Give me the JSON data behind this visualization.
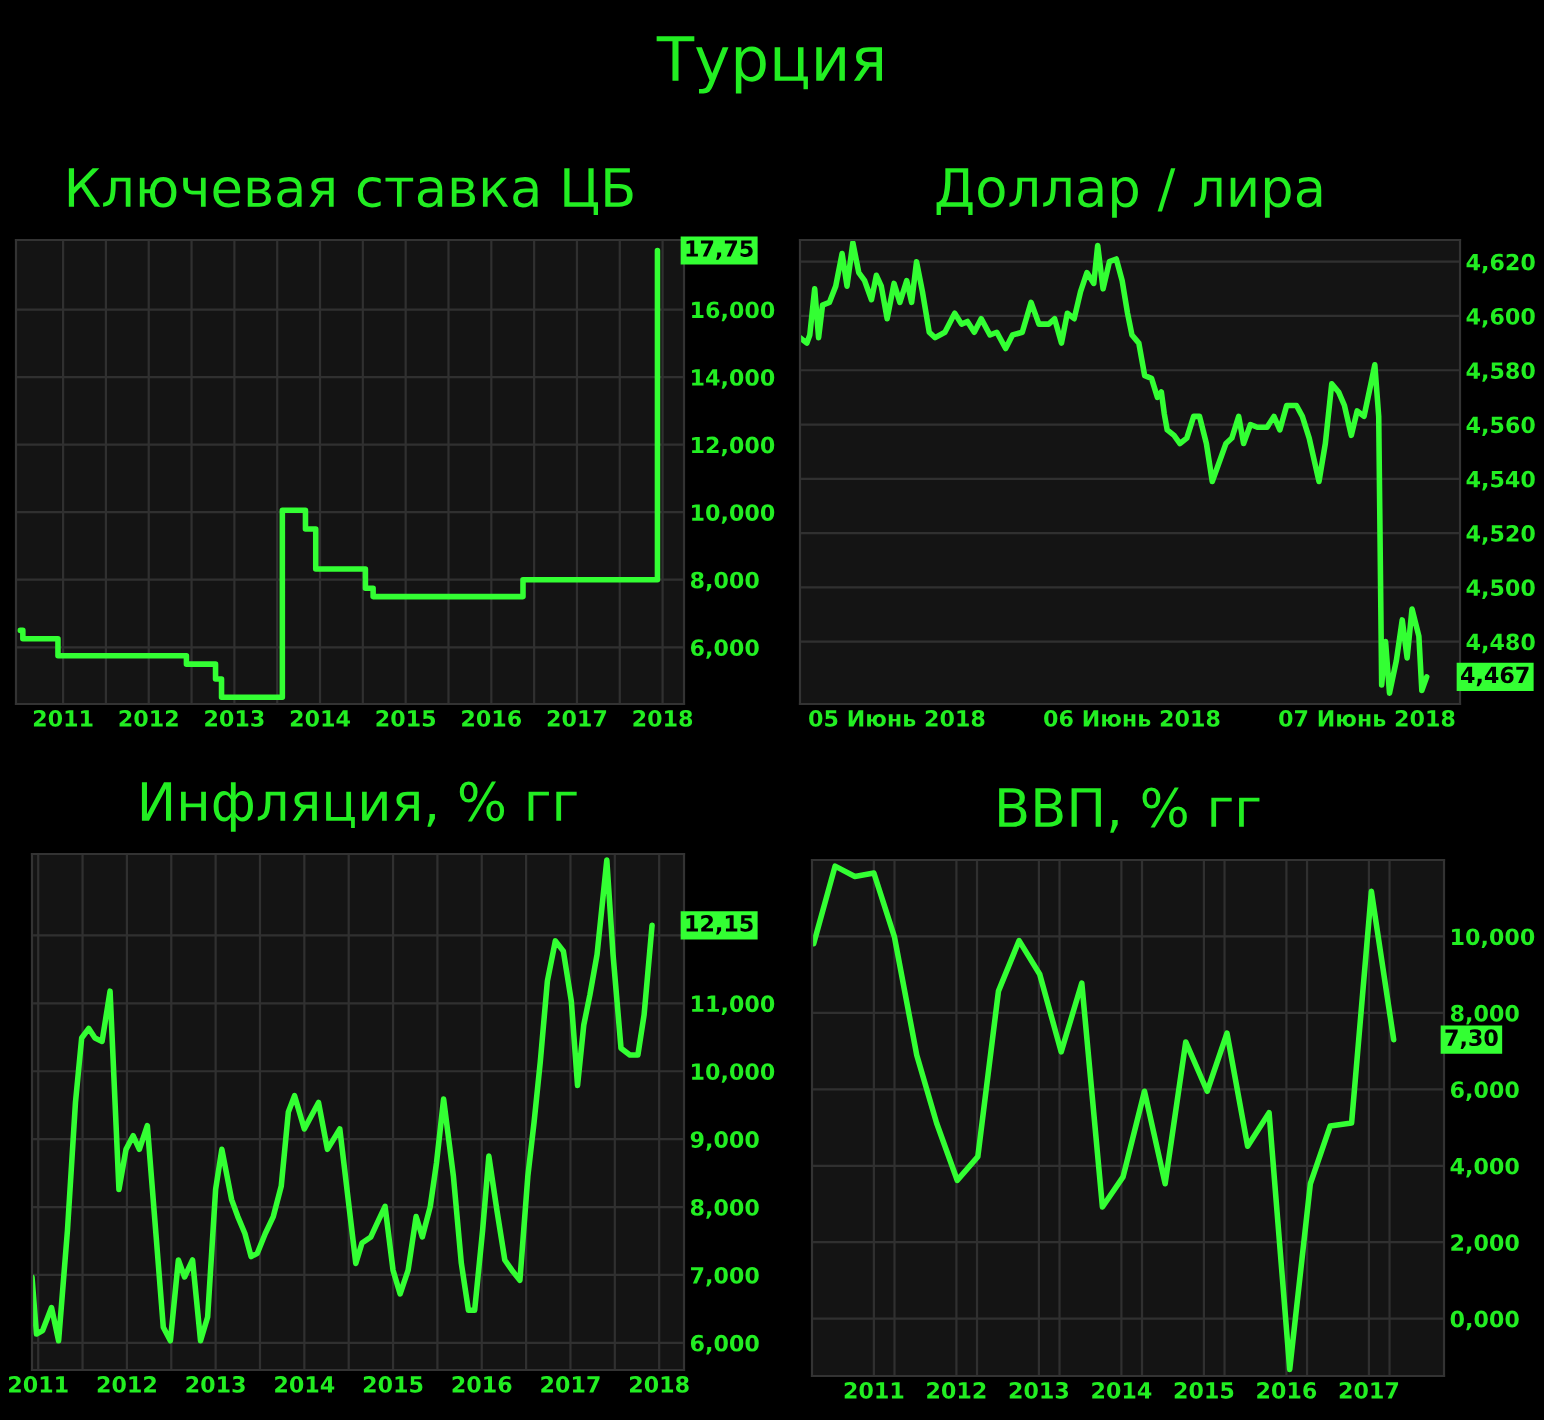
{
  "chart_data": [
    {
      "type": "step",
      "title": "Ключевая ставка ЦБ",
      "annotations": [
        "Турция",
        {
          "text": "17,75",
          "y": 17.75
        }
      ],
      "series": [
        {
          "color": "#33ff33",
          "x": [
            2011.0,
            2011.03,
            2011.43,
            2011.44,
            2012.94,
            2013.28,
            2013.35,
            2014.04,
            2014.06,
            2014.33,
            2014.45,
            2015.03,
            2015.12,
            2016.87,
            2018.37,
            2018.44
          ],
          "values": [
            6.5,
            6.25,
            6.25,
            5.75,
            5.5,
            5.06,
            4.52,
            4.52,
            10.06,
            9.5,
            8.32,
            7.75,
            7.5,
            8.0,
            8.0,
            17.75
          ]
        }
      ],
      "xlim": [
        2010.95,
        2018.75
      ],
      "xticks": [
        {
          "value": 2011.5,
          "label": "2011"
        },
        {
          "value": 2012.5,
          "label": "2012"
        },
        {
          "value": 2013.5,
          "label": "2013"
        },
        {
          "value": 2014.5,
          "label": "2014"
        },
        {
          "value": 2015.5,
          "label": "2015"
        },
        {
          "value": 2016.5,
          "label": "2016"
        },
        {
          "value": 2017.5,
          "label": "2017"
        },
        {
          "value": 2018.5,
          "label": "2018"
        },
        {
          "value": 2012,
          "label": null
        },
        {
          "value": 2013,
          "label": null
        },
        {
          "value": 2014,
          "label": null
        },
        {
          "value": 2015,
          "label": null
        },
        {
          "value": 2016,
          "label": null
        },
        {
          "value": 2017,
          "label": null
        },
        {
          "value": 2018,
          "label": null
        }
      ],
      "ylim": [
        4.32,
        18.06
      ],
      "yticks": [
        {
          "value": 6,
          "label": "6,000"
        },
        {
          "value": 8,
          "label": "8,000"
        },
        {
          "value": 10,
          "label": "10,000"
        },
        {
          "value": 12,
          "label": "12,000"
        },
        {
          "value": 14,
          "label": "14,000"
        },
        {
          "value": 16,
          "label": "16,000"
        }
      ],
      "grid": true
    },
    {
      "type": "line",
      "title": "Доллар / лира",
      "annotations": [
        {
          "text": "4,467",
          "y": 4.467
        }
      ],
      "series": [
        {
          "color": "#33ff33",
          "x": [
            "2018-06-05T02:06",
            "2018-06-05T02:48",
            "2018-06-05T03:06",
            "2018-06-05T03:36",
            "2018-06-05T04:00",
            "2018-06-05T04:24",
            "2018-06-05T05:06",
            "2018-06-05T05:45",
            "2018-06-05T06:24",
            "2018-06-05T06:54",
            "2018-06-05T07:30",
            "2018-06-05T08:06",
            "2018-06-05T08:42",
            "2018-06-05T09:24",
            "2018-06-05T09:54",
            "2018-06-05T10:24",
            "2018-06-05T11:00",
            "2018-06-05T11:42",
            "2018-06-05T12:18",
            "2018-06-05T13:00",
            "2018-06-05T13:30",
            "2018-06-05T14:00",
            "2018-06-05T14:36",
            "2018-06-05T15:18",
            "2018-06-05T15:54",
            "2018-06-05T16:54",
            "2018-06-05T17:54",
            "2018-06-05T18:36",
            "2018-06-05T19:12",
            "2018-06-05T19:54",
            "2018-06-05T20:36",
            "2018-06-05T21:30",
            "2018-06-05T22:12",
            "2018-06-05T23:06",
            "2018-06-05T23:48",
            "2018-06-06T00:48",
            "2018-06-06T01:42",
            "2018-06-06T02:30",
            "2018-06-06T03:30",
            "2018-06-06T04:06",
            "2018-06-06T04:48",
            "2018-06-06T05:24",
            "2018-06-06T06:06",
            "2018-06-06T06:45",
            "2018-06-06T07:24",
            "2018-06-06T08:06",
            "2018-06-06T08:30",
            "2018-06-06T09:03",
            "2018-06-06T09:42",
            "2018-06-06T10:24",
            "2018-06-06T11:00",
            "2018-06-06T11:33",
            "2018-06-06T12:00",
            "2018-06-06T12:42",
            "2018-06-06T13:18",
            "2018-06-06T14:00",
            "2018-06-06T14:36",
            "2018-06-06T15:00",
            "2018-06-06T15:18",
            "2018-06-06T15:36",
            "2018-06-06T16:18",
            "2018-06-06T16:54",
            "2018-06-06T17:36",
            "2018-06-06T18:18",
            "2018-06-06T18:54",
            "2018-06-06T19:36",
            "2018-06-06T20:12",
            "2018-06-06T20:54",
            "2018-06-06T21:36",
            "2018-06-06T22:12",
            "2018-06-06T22:54",
            "2018-06-06T23:24",
            "2018-06-07T00:06",
            "2018-06-07T00:48",
            "2018-06-07T01:48",
            "2018-06-07T02:30",
            "2018-06-07T03:06",
            "2018-06-07T03:48",
            "2018-06-07T04:48",
            "2018-06-07T05:24",
            "2018-06-07T06:06",
            "2018-06-07T07:06",
            "2018-06-07T07:45",
            "2018-06-07T08:24",
            "2018-06-07T09:06",
            "2018-06-07T09:42",
            "2018-06-07T10:24",
            "2018-06-07T11:00",
            "2018-06-07T11:42",
            "2018-06-07T12:24",
            "2018-06-07T12:48",
            "2018-06-07T13:12",
            "2018-06-07T13:30",
            "2018-06-07T13:54",
            "2018-06-07T14:18",
            "2018-06-07T15:00",
            "2018-06-07T15:36",
            "2018-06-07T16:06",
            "2018-06-07T16:36",
            "2018-06-07T17:18",
            "2018-06-07T17:36",
            "2018-06-07T18:06"
          ],
          "values": [
            4.592,
            4.59,
            4.593,
            4.61,
            4.592,
            4.604,
            4.605,
            4.611,
            4.623,
            4.611,
            4.627,
            4.616,
            4.613,
            4.606,
            4.615,
            4.611,
            4.599,
            4.612,
            4.605,
            4.613,
            4.605,
            4.62,
            4.609,
            4.594,
            4.592,
            4.594,
            4.601,
            4.597,
            4.598,
            4.594,
            4.599,
            4.593,
            4.594,
            4.588,
            4.593,
            4.594,
            4.605,
            4.597,
            4.597,
            4.599,
            4.59,
            4.601,
            4.599,
            4.609,
            4.616,
            4.612,
            4.626,
            4.61,
            4.62,
            4.621,
            4.613,
            4.601,
            4.593,
            4.59,
            4.578,
            4.577,
            4.57,
            4.572,
            4.564,
            4.558,
            4.556,
            4.553,
            4.555,
            4.563,
            4.563,
            4.553,
            4.539,
            4.546,
            4.553,
            4.555,
            4.563,
            4.553,
            4.56,
            4.559,
            4.559,
            4.563,
            4.558,
            4.567,
            4.567,
            4.563,
            4.555,
            4.539,
            4.553,
            4.575,
            4.572,
            4.567,
            4.556,
            4.565,
            4.563,
            4.575,
            4.582,
            4.563,
            4.464,
            4.48,
            4.461,
            4.473,
            4.488,
            4.474,
            4.492,
            4.482,
            4.462,
            4.467
          ]
        }
      ],
      "xlim": [
        "2018-06-05T02:06",
        "2018-06-07T21:30"
      ],
      "xticks": [
        {
          "value": "2018-06-05T12:00",
          "label": "05 Июнь 2018"
        },
        {
          "value": "2018-06-06T12:00",
          "label": "06 Июнь 2018"
        },
        {
          "value": "2018-06-07T12:00",
          "label": "07 Июнь 2018"
        }
      ],
      "ylim": [
        4.457,
        4.628
      ],
      "yticks": [
        {
          "value": 4.48,
          "label": "4,480"
        },
        {
          "value": 4.5,
          "label": "4,500"
        },
        {
          "value": 4.52,
          "label": "4,520"
        },
        {
          "value": 4.54,
          "label": "4,540"
        },
        {
          "value": 4.56,
          "label": "4,560"
        },
        {
          "value": 4.58,
          "label": "4,580"
        },
        {
          "value": 4.6,
          "label": "4,600"
        },
        {
          "value": 4.62,
          "label": "4,620"
        }
      ],
      "grid": "y"
    },
    {
      "type": "line",
      "title": "Инфляция, % гг",
      "annotations": [
        {
          "text": "12,15",
          "y": 12.15
        }
      ],
      "series": [
        {
          "color": "#33ff33",
          "x": [
            2011.43,
            2011.48,
            2011.55,
            2011.65,
            2011.73,
            2011.83,
            2011.92,
            2011.99,
            2012.07,
            2012.14,
            2012.22,
            2012.31,
            2012.41,
            2012.49,
            2012.57,
            2012.64,
            2012.73,
            2012.83,
            2012.91,
            2012.99,
            2013.08,
            2013.15,
            2013.24,
            2013.33,
            2013.41,
            2013.5,
            2013.57,
            2013.68,
            2013.75,
            2013.83,
            2013.9,
            2013.97,
            2014.06,
            2014.15,
            2014.24,
            2014.32,
            2014.39,
            2014.5,
            2014.66,
            2014.76,
            2014.9,
            2015.08,
            2015.15,
            2015.25,
            2015.32,
            2015.41,
            2015.5,
            2015.58,
            2015.67,
            2015.76,
            2015.83,
            2015.92,
            2015.99,
            2016.07,
            2016.18,
            2016.27,
            2016.35,
            2016.42,
            2016.51,
            2016.58,
            2016.67,
            2016.76,
            2016.84,
            2016.93,
            2017.02,
            2017.09,
            2017.16,
            2017.24,
            2017.33,
            2017.42,
            2017.51,
            2017.58,
            2017.65,
            2017.72,
            2017.8,
            2017.91,
            2017.98,
            2018.07,
            2018.17,
            2018.26,
            2018.33,
            2018.42
          ],
          "values": [
            6.97,
            6.13,
            6.18,
            6.52,
            6.03,
            7.66,
            9.54,
            10.49,
            10.63,
            10.49,
            10.44,
            11.18,
            8.26,
            8.85,
            9.05,
            8.85,
            9.2,
            7.56,
            6.23,
            6.03,
            7.22,
            6.97,
            7.22,
            6.03,
            6.38,
            8.26,
            8.85,
            8.11,
            7.86,
            7.61,
            7.27,
            7.32,
            7.61,
            7.86,
            8.31,
            9.4,
            9.64,
            9.15,
            9.54,
            8.85,
            9.15,
            7.17,
            7.47,
            7.56,
            7.76,
            8.01,
            7.07,
            6.72,
            7.07,
            7.86,
            7.56,
            8.01,
            8.65,
            9.59,
            8.46,
            7.17,
            6.48,
            6.48,
            7.66,
            8.75,
            7.96,
            7.22,
            7.07,
            6.92,
            8.46,
            9.25,
            10.14,
            11.33,
            11.92,
            11.77,
            11.03,
            9.79,
            10.68,
            11.13,
            11.72,
            13.11,
            11.72,
            10.34,
            10.24,
            10.24,
            10.83,
            12.15
          ]
        }
      ],
      "xlim": [
        2011.43,
        2018.78
      ],
      "xticks": [
        {
          "value": 2011.5,
          "label": "2011"
        },
        {
          "value": 2012.5,
          "label": "2012"
        },
        {
          "value": 2013.5,
          "label": "2013"
        },
        {
          "value": 2014.5,
          "label": "2014"
        },
        {
          "value": 2015.5,
          "label": "2015"
        },
        {
          "value": 2016.5,
          "label": "2016"
        },
        {
          "value": 2017.5,
          "label": "2017"
        },
        {
          "value": 2018.5,
          "label": "2018"
        },
        {
          "value": 2012,
          "label": null
        },
        {
          "value": 2013,
          "label": null
        },
        {
          "value": 2014,
          "label": null
        },
        {
          "value": 2015,
          "label": null
        },
        {
          "value": 2016,
          "label": null
        },
        {
          "value": 2017,
          "label": null
        },
        {
          "value": 2018,
          "label": null
        }
      ],
      "ylim": [
        5.6,
        13.2
      ],
      "yticks": [
        {
          "value": 6,
          "label": "6,000"
        },
        {
          "value": 7,
          "label": "7,000"
        },
        {
          "value": 8,
          "label": "8,000"
        },
        {
          "value": 9,
          "label": "9,000"
        },
        {
          "value": 10,
          "label": "10,000"
        },
        {
          "value": 11,
          "label": "11,000"
        },
        {
          "value": 12,
          "label": null
        }
      ],
      "grid": true
    },
    {
      "type": "line",
      "title": "ВВП, % гг",
      "annotations": [
        {
          "text": "7,30",
          "y": 7.3
        }
      ],
      "series": [
        {
          "color": "#33ff33",
          "x": [
            2010.27,
            2010.53,
            2010.77,
            2011.0,
            2011.25,
            2011.52,
            2011.76,
            2012.01,
            2012.26,
            2012.51,
            2012.76,
            2013.01,
            2013.27,
            2013.52,
            2013.77,
            2014.02,
            2014.28,
            2014.53,
            2014.78,
            2015.04,
            2015.28,
            2015.53,
            2015.79,
            2016.04,
            2016.29,
            2016.53,
            2016.79,
            2017.03,
            2017.3
          ],
          "values": [
            9.81,
            11.84,
            11.57,
            11.66,
            9.98,
            6.89,
            5.12,
            3.62,
            4.24,
            8.57,
            9.89,
            9.01,
            6.98,
            8.78,
            2.92,
            3.71,
            5.95,
            3.53,
            7.24,
            5.95,
            7.47,
            4.51,
            5.39,
            -1.33,
            3.53,
            5.04,
            5.12,
            11.18,
            7.3
          ]
        }
      ],
      "xlim": [
        2010.25,
        2017.91
      ],
      "xticks": [
        {
          "value": 2011,
          "label": "2011"
        },
        {
          "value": 2012,
          "label": "2012"
        },
        {
          "value": 2013,
          "label": "2013"
        },
        {
          "value": 2014,
          "label": "2014"
        },
        {
          "value": 2015,
          "label": "2015"
        },
        {
          "value": 2016,
          "label": "2016"
        },
        {
          "value": 2017,
          "label": "2017"
        },
        {
          "value": 2011.25,
          "label": null
        },
        {
          "value": 2012.25,
          "label": null
        },
        {
          "value": 2013.25,
          "label": null
        },
        {
          "value": 2014.25,
          "label": null
        },
        {
          "value": 2015.25,
          "label": null
        },
        {
          "value": 2016.25,
          "label": null
        },
        {
          "value": 2017.25,
          "label": null
        }
      ],
      "ylim": [
        -1.5,
        12.0
      ],
      "yticks": [
        {
          "value": 0,
          "label": "0,000"
        },
        {
          "value": 2,
          "label": "2,000"
        },
        {
          "value": 4,
          "label": "4,000"
        },
        {
          "value": 6,
          "label": "6,000"
        },
        {
          "value": 8,
          "label": "8,000"
        },
        {
          "value": 10,
          "label": "10,000"
        }
      ],
      "grid": true
    }
  ]
}
